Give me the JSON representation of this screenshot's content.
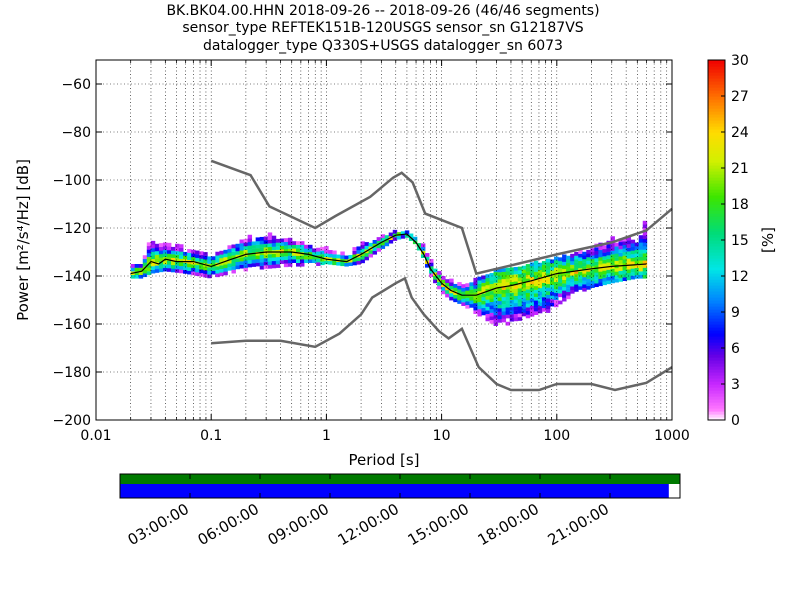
{
  "chart_data": [
    {
      "type": "heatmap",
      "title_lines": [
        "BK.BK04.00.HHN   2018-09-26 -- 2018-09-26  (46/46 segments)",
        "sensor_type REFTEK151B-120USGS sensor_sn G12187VS",
        "datalogger_type Q330S+USGS datalogger_sn 6073"
      ],
      "xlabel": "Period [s]",
      "ylabel": "Power [m²/s⁴/Hz] [dB]",
      "xscale": "log",
      "xlim": [
        0.01,
        1000
      ],
      "ylim": [
        -200,
        -50
      ],
      "x_ticks": [
        "0.01",
        "0.1",
        "1",
        "10",
        "100",
        "1000"
      ],
      "y_ticks": [
        -60,
        -80,
        -100,
        -120,
        -140,
        -160,
        -180,
        -200
      ],
      "grid": true,
      "colorbar": {
        "label": "[%]",
        "min": 0,
        "max": 30,
        "ticks": [
          0,
          3,
          6,
          9,
          12,
          15,
          18,
          21,
          24,
          27,
          30
        ]
      },
      "noise_models": [
        {
          "points": [
            [
              0.1,
              -92
            ],
            [
              0.22,
              -98
            ],
            [
              0.32,
              -111
            ],
            [
              0.8,
              -120
            ],
            [
              1.2,
              -115
            ],
            [
              2.4,
              -107
            ],
            [
              3.8,
              -99
            ],
            [
              4.5,
              -97
            ],
            [
              5.6,
              -101
            ],
            [
              7.2,
              -114
            ],
            [
              15,
              -120
            ],
            [
              20,
              -139
            ],
            [
              45,
              -135
            ],
            [
              100,
              -131
            ],
            [
              300,
              -126
            ],
            [
              600,
              -121
            ],
            [
              1000,
              -112
            ]
          ]
        },
        {
          "points": [
            [
              0.1,
              -168
            ],
            [
              0.2,
              -167
            ],
            [
              0.4,
              -167
            ],
            [
              0.8,
              -169.5
            ],
            [
              1.3,
              -164
            ],
            [
              2,
              -156
            ],
            [
              2.5,
              -149
            ],
            [
              4,
              -143
            ],
            [
              4.8,
              -141
            ],
            [
              5.5,
              -149
            ],
            [
              7,
              -156
            ],
            [
              9.5,
              -163
            ],
            [
              11.5,
              -166
            ],
            [
              15,
              -162
            ],
            [
              21,
              -178
            ],
            [
              30,
              -185
            ],
            [
              40,
              -187.5
            ],
            [
              70,
              -187.5
            ],
            [
              100,
              -185
            ],
            [
              200,
              -185
            ],
            [
              320,
              -187.5
            ],
            [
              600,
              -184.5
            ],
            [
              1000,
              -178
            ]
          ]
        }
      ],
      "mode_curve": [
        [
          0.02,
          -139
        ],
        [
          0.025,
          -138
        ],
        [
          0.03,
          -134
        ],
        [
          0.035,
          -135
        ],
        [
          0.04,
          -133
        ],
        [
          0.05,
          -134
        ],
        [
          0.07,
          -134
        ],
        [
          0.1,
          -136
        ],
        [
          0.15,
          -133
        ],
        [
          0.2,
          -131
        ],
        [
          0.3,
          -130
        ],
        [
          0.5,
          -130
        ],
        [
          0.7,
          -131
        ],
        [
          1,
          -133
        ],
        [
          1.5,
          -134
        ],
        [
          2,
          -131
        ],
        [
          3,
          -126
        ],
        [
          4,
          -123
        ],
        [
          5,
          -122.5
        ],
        [
          6,
          -126
        ],
        [
          7,
          -131
        ],
        [
          8,
          -137
        ],
        [
          10,
          -143
        ],
        [
          12,
          -146
        ],
        [
          15,
          -148
        ],
        [
          20,
          -148
        ],
        [
          30,
          -145
        ],
        [
          40,
          -144
        ],
        [
          60,
          -142
        ],
        [
          100,
          -139
        ],
        [
          200,
          -137
        ],
        [
          300,
          -136
        ],
        [
          600,
          -135
        ]
      ],
      "psd_band": {
        "periods": [
          0.02,
          0.025,
          0.03,
          0.04,
          0.06,
          0.1,
          0.15,
          0.2,
          0.3,
          0.5,
          0.8,
          1,
          1.5,
          2,
          3,
          4,
          5,
          6,
          7,
          8,
          10,
          12,
          15,
          20,
          30,
          50,
          80,
          120,
          200,
          300,
          500,
          600
        ],
        "lower": [
          -141,
          -141,
          -139,
          -138,
          -139,
          -141,
          -139,
          -138,
          -137,
          -136,
          -136,
          -135,
          -136,
          -135,
          -129,
          -125,
          -124,
          -127,
          -133,
          -140,
          -147,
          -150,
          -152,
          -156,
          -161,
          -160,
          -156,
          -150,
          -145,
          -143,
          -141,
          -141
        ],
        "upper": [
          -135,
          -134,
          -125,
          -127,
          -128,
          -131,
          -128,
          -124,
          -123,
          -124,
          -128,
          -129,
          -131,
          -127,
          -124,
          -121,
          -121,
          -123,
          -128,
          -134,
          -139,
          -142,
          -143,
          -142,
          -138,
          -136,
          -134,
          -132,
          -127,
          -125,
          -123,
          -117
        ],
        "centre": [
          -139,
          -138,
          -134,
          -133,
          -134,
          -136,
          -133,
          -131,
          -130,
          -130,
          -132,
          -133,
          -134,
          -131,
          -126,
          -123,
          -122.5,
          -126,
          -131,
          -137,
          -143,
          -146,
          -148,
          -148,
          -145,
          -143,
          -141,
          -139,
          -137,
          -136,
          -135,
          -135
        ]
      }
    },
    {
      "type": "timeline",
      "x_ticks": [
        "03:00:00",
        "06:00:00",
        "09:00:00",
        "12:00:00",
        "15:00:00",
        "18:00:00",
        "21:00:00"
      ],
      "segments_fraction": 1.0,
      "coverage_fraction": 0.98
    }
  ]
}
